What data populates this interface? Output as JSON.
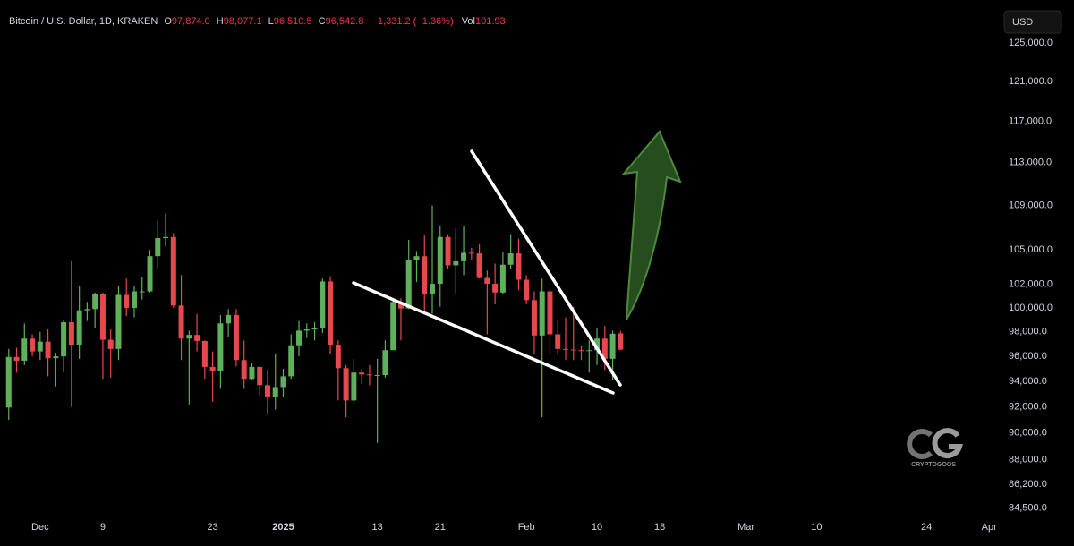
{
  "header": {
    "symbol": "Bitcoin / U.S. Dollar, 1D, KRAKEN",
    "open_label": "O",
    "open": "97,874.0",
    "high_label": "H",
    "high": "98,077.1",
    "low_label": "L",
    "low": "96,510.5",
    "close_label": "C",
    "close": "96,542.8",
    "change": "−1,331.2 (−1.36%)",
    "volume_label": "Vol",
    "volume": "101.93"
  },
  "currency": "USD",
  "logo": "CRYPTOGOOS",
  "chart_data": {
    "type": "candlestick",
    "log_scale": true,
    "grid": false,
    "up_color": "#5fb05a",
    "down_color": "#e5484d",
    "xlim": [
      "2024-11-26",
      "2025-04-02"
    ],
    "ylim": [
      83700,
      129600
    ],
    "yticks": [
      {
        "value": 125000,
        "label": "125,000.0"
      },
      {
        "value": 121000,
        "label": "121,000.0"
      },
      {
        "value": 117000,
        "label": "117,000.0"
      },
      {
        "value": 113000,
        "label": "113,000.0"
      },
      {
        "value": 109000,
        "label": "109,000.0"
      },
      {
        "value": 105000,
        "label": "105,000.0"
      },
      {
        "value": 102000,
        "label": "102,000.0"
      },
      {
        "value": 100000,
        "label": "100,000.0"
      },
      {
        "value": 98000,
        "label": "98,000.0"
      },
      {
        "value": 96000,
        "label": "96,000.0"
      },
      {
        "value": 94000,
        "label": "94,000.0"
      },
      {
        "value": 92000,
        "label": "92,000.0"
      },
      {
        "value": 90000,
        "label": "90,000.0"
      },
      {
        "value": 88000,
        "label": "88,000.0"
      },
      {
        "value": 86200,
        "label": "86,200.0"
      },
      {
        "value": 84500,
        "label": "84,500.0"
      }
    ],
    "xticks": [
      {
        "value": "2024-12-01",
        "label": "Dec"
      },
      {
        "value": "2024-12-09",
        "label": "9"
      },
      {
        "value": "2024-12-23",
        "label": "23"
      },
      {
        "value": "2025-01-01",
        "label": "2025"
      },
      {
        "value": "2025-01-13",
        "label": "13"
      },
      {
        "value": "2025-01-21",
        "label": "21"
      },
      {
        "value": "2025-02-01",
        "label": "Feb"
      },
      {
        "value": "2025-02-10",
        "label": "10"
      },
      {
        "value": "2025-02-18",
        "label": "18"
      },
      {
        "value": "2025-03-01",
        "label": "Mar"
      },
      {
        "value": "2025-03-10",
        "label": "10"
      },
      {
        "value": "2025-03-24",
        "label": "24"
      },
      {
        "value": "2025-04-01",
        "label": "Apr"
      }
    ],
    "x": [
      "2024-11-27",
      "2024-11-28",
      "2024-11-29",
      "2024-11-30",
      "2024-12-01",
      "2024-12-02",
      "2024-12-03",
      "2024-12-04",
      "2024-12-05",
      "2024-12-06",
      "2024-12-07",
      "2024-12-08",
      "2024-12-09",
      "2024-12-10",
      "2024-12-11",
      "2024-12-12",
      "2024-12-13",
      "2024-12-14",
      "2024-12-15",
      "2024-12-16",
      "2024-12-17",
      "2024-12-18",
      "2024-12-19",
      "2024-12-20",
      "2024-12-21",
      "2024-12-22",
      "2024-12-23",
      "2024-12-24",
      "2024-12-25",
      "2024-12-26",
      "2024-12-27",
      "2024-12-28",
      "2024-12-29",
      "2024-12-30",
      "2024-12-31",
      "2025-01-01",
      "2025-01-02",
      "2025-01-03",
      "2025-01-04",
      "2025-01-05",
      "2025-01-06",
      "2025-01-07",
      "2025-01-08",
      "2025-01-09",
      "2025-01-10",
      "2025-01-11",
      "2025-01-12",
      "2025-01-13",
      "2025-01-14",
      "2025-01-15",
      "2025-01-16",
      "2025-01-17",
      "2025-01-18",
      "2025-01-19",
      "2025-01-20",
      "2025-01-21",
      "2025-01-22",
      "2025-01-23",
      "2025-01-24",
      "2025-01-25",
      "2025-01-26",
      "2025-01-27",
      "2025-01-28",
      "2025-01-29",
      "2025-01-30",
      "2025-01-31",
      "2025-02-01",
      "2025-02-02",
      "2025-02-03",
      "2025-02-04",
      "2025-02-05",
      "2025-02-06",
      "2025-02-07",
      "2025-02-08",
      "2025-02-09",
      "2025-02-10",
      "2025-02-11",
      "2025-02-12",
      "2025-02-13"
    ],
    "open": [
      91950,
      95950,
      95650,
      97450,
      96400,
      97200,
      95850,
      96000,
      98800,
      96950,
      99800,
      99900,
      101150,
      97350,
      96600,
      101100,
      100000,
      101400,
      101400,
      104450,
      106050,
      106150,
      100200,
      97450,
      97750,
      97250,
      95150,
      94850,
      98700,
      99400,
      95700,
      94200,
      95150,
      93700,
      92800,
      93550,
      94400,
      96900,
      98100,
      98200,
      98350,
      102250,
      96950,
      95050,
      92500,
      94700,
      94550,
      94500,
      94500,
      96500,
      100500,
      99950,
      104100,
      104450,
      101200,
      102050,
      106150,
      103650,
      104000,
      104750,
      104700,
      102550,
      102050,
      101300,
      103700,
      104700,
      102400,
      100650,
      97700,
      101400,
      97800,
      96600,
      96550,
      96500,
      96450,
      96500,
      97450,
      95800,
      97874.0
    ],
    "high": [
      96600,
      96700,
      98700,
      97800,
      98000,
      98200,
      96300,
      99000,
      104000,
      101900,
      100500,
      101300,
      101300,
      98200,
      101900,
      102500,
      101900,
      102600,
      105000,
      107700,
      108300,
      106500,
      102800,
      98100,
      99500,
      97300,
      96400,
      99400,
      99900,
      99900,
      97300,
      95500,
      95200,
      94900,
      96200,
      95000,
      97800,
      98900,
      98700,
      98800,
      102500,
      102700,
      97300,
      95300,
      95800,
      95000,
      95300,
      95800,
      97300,
      100700,
      100800,
      105900,
      104900,
      106300,
      109000,
      107200,
      106400,
      106900,
      107100,
      105200,
      105500,
      103200,
      103800,
      104800,
      106400,
      106000,
      102800,
      101400,
      102500,
      101700,
      99000,
      99200,
      100100,
      96900,
      97300,
      98300,
      98500,
      98100,
      98077.1
    ],
    "low": [
      91000,
      94700,
      95300,
      96000,
      95700,
      94400,
      93600,
      94700,
      92000,
      95800,
      98900,
      98300,
      94200,
      94300,
      95700,
      99300,
      99200,
      100700,
      101300,
      103400,
      105300,
      100000,
      95700,
      92200,
      96400,
      94200,
      92400,
      93400,
      97600,
      95200,
      93400,
      94100,
      92900,
      91400,
      91800,
      92800,
      94200,
      96000,
      97500,
      97300,
      97900,
      96200,
      92500,
      91200,
      92200,
      93800,
      93700,
      89250,
      94300,
      96500,
      97300,
      99900,
      102200,
      99500,
      99500,
      100100,
      103300,
      101200,
      102800,
      104150,
      102500,
      97800,
      100300,
      101200,
      103300,
      101500,
      100300,
      96200,
      91200,
      96200,
      96200,
      95700,
      95700,
      95700,
      94700,
      95300,
      94900,
      94100,
      96510.5
    ],
    "close": [
      95950,
      95650,
      97450,
      96400,
      97200,
      95850,
      96000,
      98800,
      96950,
      99800,
      99900,
      101150,
      97350,
      96600,
      101100,
      100000,
      101400,
      101400,
      104450,
      106050,
      106150,
      100200,
      97450,
      97750,
      97250,
      95150,
      94850,
      98700,
      99400,
      95700,
      94200,
      95150,
      93700,
      92800,
      93550,
      94400,
      96900,
      98100,
      98200,
      98350,
      102250,
      96950,
      95050,
      92500,
      94700,
      94550,
      94500,
      94500,
      96500,
      100500,
      99950,
      104100,
      104450,
      101200,
      102050,
      106150,
      103650,
      104000,
      104750,
      104700,
      102550,
      102050,
      101300,
      103700,
      104700,
      102400,
      100650,
      97700,
      101400,
      97800,
      96600,
      96550,
      96500,
      96450,
      96500,
      97450,
      95800,
      97850,
      96542.8
    ]
  }
}
